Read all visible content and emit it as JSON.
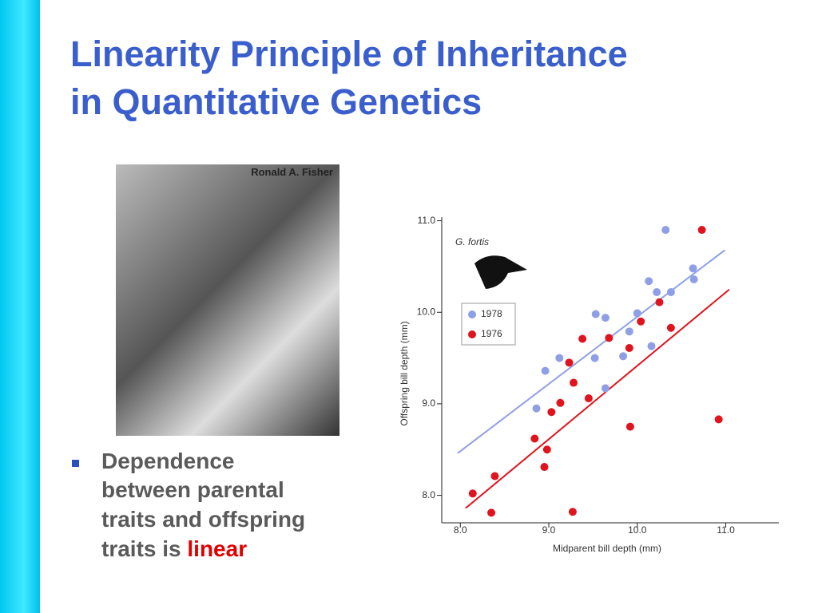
{
  "slide": {
    "title_lines": [
      "Linearity Principle of Inheritance",
      "in Quantitative Genetics"
    ],
    "photo_caption": "Ronald A. Fisher",
    "bullet": {
      "lines": [
        "Dependence",
        "between parental",
        "traits and offspring",
        "traits is "
      ],
      "highlight": "linear"
    }
  },
  "chart_data": {
    "type": "scatter",
    "species_label": "G. fortis",
    "x_label": "Midparent bill depth (mm)",
    "y_label": "Offspring bill depth (mm)",
    "xlim": [
      7.79,
      11.6
    ],
    "ylim": [
      7.7,
      11.04
    ],
    "xticks": [
      {
        "value": 8,
        "label": "8.0"
      },
      {
        "value": 9,
        "label": "9.0"
      },
      {
        "value": 10,
        "label": "10.0"
      },
      {
        "value": 11,
        "label": "11.0"
      }
    ],
    "yticks": [
      {
        "value": 8,
        "label": "8.0"
      },
      {
        "value": 9,
        "label": "9.0"
      },
      {
        "value": 10,
        "label": "10.0"
      },
      {
        "value": 11,
        "label": "11.0"
      }
    ],
    "series": [
      {
        "name": "1978",
        "color": "#8f9fe6",
        "x": [
          10.32,
          10.63,
          10.64,
          10.38,
          10.13,
          10.22,
          10.0,
          9.53,
          9.64,
          9.91,
          9.84,
          9.52,
          9.12,
          8.96,
          10.16,
          9.64,
          8.86
        ],
        "values": [
          10.9,
          10.48,
          10.36,
          10.22,
          10.34,
          10.22,
          9.99,
          9.98,
          9.94,
          9.79,
          9.52,
          9.5,
          9.5,
          9.36,
          9.63,
          9.17,
          8.95
        ]
      },
      {
        "name": "1976",
        "color": "#e0141e",
        "x": [
          10.73,
          10.25,
          10.38,
          10.04,
          9.68,
          9.91,
          9.38,
          9.23,
          9.28,
          9.45,
          9.13,
          9.03,
          8.84,
          8.98,
          8.95,
          8.39,
          8.14,
          8.35,
          9.27,
          9.92,
          10.92
        ],
        "values": [
          10.9,
          10.11,
          9.83,
          9.9,
          9.72,
          9.61,
          9.71,
          9.45,
          9.23,
          9.06,
          9.01,
          8.91,
          8.62,
          8.5,
          8.31,
          8.21,
          8.02,
          7.81,
          7.82,
          8.75,
          8.83
        ]
      }
    ],
    "fit_lines": [
      {
        "x": [
          7.97,
          10.99
        ],
        "y": [
          8.46,
          10.68
        ]
      },
      {
        "x": [
          8.06,
          11.04
        ],
        "y": [
          7.86,
          10.25
        ]
      }
    ]
  }
}
